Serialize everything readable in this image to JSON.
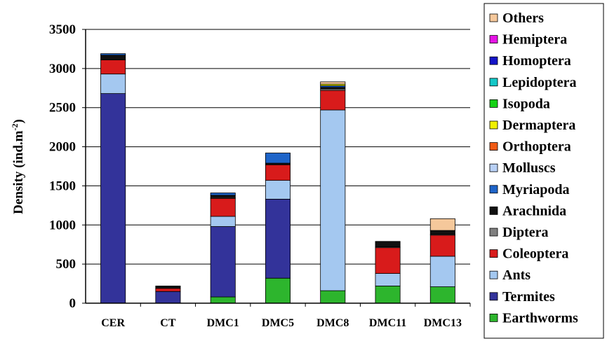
{
  "chart_data": {
    "type": "bar",
    "stacked": true,
    "ylabel": "Density (ind.m",
    "ylabel_sup": "-2",
    "ylabel_close": ")",
    "ylim": [
      0,
      3500
    ],
    "yticks": [
      "0",
      "500",
      "1000",
      "1500",
      "2000",
      "2500",
      "3000",
      "3500"
    ],
    "grid": true,
    "legend_position": "right",
    "categories": [
      "CER",
      "CT",
      "DMC1",
      "DMC5",
      "DMC8",
      "DMC11",
      "DMC13"
    ],
    "series": [
      {
        "name": "Earthworms",
        "color": "#2db52d",
        "values": [
          0,
          0,
          80,
          320,
          160,
          220,
          210
        ]
      },
      {
        "name": "Termites",
        "color": "#33339a",
        "values": [
          2680,
          150,
          900,
          1010,
          0,
          0,
          0
        ]
      },
      {
        "name": "Ants",
        "color": "#a4c8f0",
        "values": [
          250,
          0,
          130,
          240,
          2310,
          160,
          390
        ]
      },
      {
        "name": "Coleoptera",
        "color": "#d81b1b",
        "values": [
          180,
          40,
          230,
          200,
          250,
          330,
          270
        ]
      },
      {
        "name": "Diptera",
        "color": "#808080",
        "values": [
          0,
          0,
          10,
          0,
          20,
          10,
          10
        ]
      },
      {
        "name": "Arachnida",
        "color": "#111111",
        "values": [
          60,
          30,
          30,
          20,
          20,
          70,
          50
        ]
      },
      {
        "name": "Myriapoda",
        "color": "#1e64c8",
        "values": [
          20,
          0,
          30,
          130,
          20,
          0,
          0
        ]
      },
      {
        "name": "Molluscs",
        "color": "#b8d0f5",
        "values": [
          0,
          0,
          0,
          0,
          0,
          0,
          0
        ]
      },
      {
        "name": "Orthoptera",
        "color": "#f05a14",
        "values": [
          0,
          0,
          0,
          0,
          0,
          0,
          0
        ]
      },
      {
        "name": "Dermaptera",
        "color": "#f0f000",
        "values": [
          0,
          0,
          0,
          0,
          20,
          0,
          0
        ]
      },
      {
        "name": "Isopoda",
        "color": "#14d214",
        "values": [
          0,
          0,
          0,
          0,
          0,
          0,
          0
        ]
      },
      {
        "name": "Lepidoptera",
        "color": "#14c8c8",
        "values": [
          0,
          0,
          0,
          0,
          0,
          0,
          0
        ]
      },
      {
        "name": "Homoptera",
        "color": "#1414c8",
        "values": [
          0,
          0,
          0,
          0,
          0,
          0,
          0
        ]
      },
      {
        "name": "Hemiptera",
        "color": "#e614e6",
        "values": [
          0,
          0,
          0,
          0,
          0,
          0,
          0
        ]
      },
      {
        "name": "Others",
        "color": "#f5c89b",
        "values": [
          0,
          0,
          0,
          0,
          30,
          0,
          150
        ]
      }
    ]
  }
}
